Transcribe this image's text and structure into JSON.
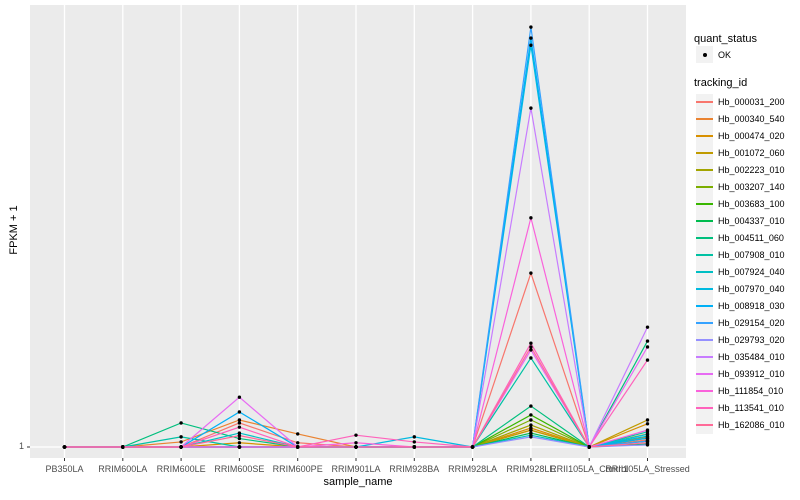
{
  "figure": {
    "background": "#FFFFFF",
    "panel_background": "#EBEBEB",
    "grid_color": "#FFFFFF",
    "point_color": "#000000",
    "tick_color": "#333333",
    "tick_label_color": "#4D4D4D"
  },
  "axes": {
    "x_title": "sample_name",
    "y_title": "FPKM + 1",
    "y_tick_label": "1"
  },
  "legend": {
    "quant_status_title": "quant_status",
    "quant_status_items": [
      {
        "label": "OK",
        "marker": "black-point"
      }
    ],
    "tracking_id_title": "tracking_id"
  },
  "chart_data": {
    "type": "line",
    "title": "",
    "xlabel": "sample_name",
    "ylabel": "FPKM + 1",
    "x_categories": [
      "PB350LA",
      "RRIM600LA",
      "RRIM600LE",
      "RRIM600SE",
      "RRIM600PE",
      "RRIM901LA",
      "RRIM928BA",
      "RRIM928LA",
      "RRIM928LE",
      "RRII105LA_Control",
      "RRII105LA_Stressed"
    ],
    "y_axis": {
      "tick_labels": [
        "1"
      ],
      "scale": "log-like, only the value 1 is labeled",
      "baseline_value": 1
    },
    "values_units": "normalized height above baseline (0 = FPKM+1 of 1, 1 = top of panel)",
    "grid": "vertical major gridline per category, horizontal gridline at y=1",
    "legend_position": "right",
    "point_marker": "black dot on every observation (quant_status = OK)",
    "series": [
      {
        "name": "Hb_000031_200",
        "color": "#F8766D",
        "values": [
          0,
          0,
          0,
          0.057,
          0.01,
          0,
          0,
          0,
          0.412,
          0,
          0.017
        ]
      },
      {
        "name": "Hb_000340_540",
        "color": "#EA8331",
        "values": [
          0,
          0,
          0.012,
          0.064,
          0.031,
          0,
          0,
          0,
          0.04,
          0,
          0.024
        ]
      },
      {
        "name": "Hb_000474_020",
        "color": "#D89000",
        "values": [
          0,
          0,
          0,
          0.01,
          0,
          0,
          0,
          0,
          0.045,
          0,
          0.055
        ]
      },
      {
        "name": "Hb_001072_060",
        "color": "#C09B00",
        "values": [
          0,
          0,
          0,
          0,
          0,
          0,
          0,
          0,
          0.04,
          0,
          0.064
        ]
      },
      {
        "name": "Hb_002223_010",
        "color": "#A3A500",
        "values": [
          0,
          0,
          0,
          0,
          0,
          0,
          0,
          0,
          0.052,
          0,
          0.031
        ]
      },
      {
        "name": "Hb_003207_140",
        "color": "#7CAE00",
        "values": [
          0,
          0,
          0,
          0,
          0,
          0,
          0,
          0,
          0.064,
          0,
          0.021
        ]
      },
      {
        "name": "Hb_003683_100",
        "color": "#39B600",
        "values": [
          0,
          0,
          0,
          0,
          0,
          0,
          0,
          0,
          0.076,
          0,
          0.014
        ]
      },
      {
        "name": "Hb_004337_010",
        "color": "#00BB4E",
        "values": [
          0,
          0,
          0,
          0,
          0,
          0,
          0,
          0,
          0.033,
          0,
          0.007
        ]
      },
      {
        "name": "Hb_004511_060",
        "color": "#00BF7D",
        "values": [
          0,
          0,
          0.057,
          0.02,
          0,
          0,
          0,
          0,
          0.097,
          0,
          0.251
        ]
      },
      {
        "name": "Hb_007908_010",
        "color": "#00C1A3",
        "values": [
          0,
          0,
          0.024,
          0,
          0,
          0,
          0,
          0,
          0.211,
          0,
          0.036
        ]
      },
      {
        "name": "Hb_007924_040",
        "color": "#00BFC4",
        "values": [
          0,
          0,
          0,
          0.033,
          0,
          0,
          0,
          0,
          0.028,
          0,
          0.026
        ]
      },
      {
        "name": "Hb_007970_040",
        "color": "#00BAE0",
        "values": [
          0,
          0,
          0,
          0,
          0,
          0,
          0.024,
          0,
          0.952,
          0,
          0.03
        ]
      },
      {
        "name": "Hb_008918_030",
        "color": "#00B0F6",
        "values": [
          0,
          0,
          0,
          0.083,
          0,
          0,
          0,
          0,
          0.969,
          0,
          0.021
        ]
      },
      {
        "name": "Hb_029154_020",
        "color": "#35A2FF",
        "values": [
          0,
          0,
          0,
          0,
          0,
          0,
          0,
          0,
          0.995,
          0,
          0.014
        ]
      },
      {
        "name": "Hb_029793_020",
        "color": "#9590FF",
        "values": [
          0,
          0,
          0,
          0,
          0,
          0,
          0,
          0,
          0.024,
          0,
          0.005
        ]
      },
      {
        "name": "Hb_035484_010",
        "color": "#C77CFF",
        "values": [
          0,
          0,
          0,
          0,
          0,
          0,
          0,
          0,
          0.803,
          0,
          0.284
        ]
      },
      {
        "name": "Hb_093912_010",
        "color": "#E76BF3",
        "values": [
          0,
          0,
          0,
          0.118,
          0,
          0,
          0,
          0,
          0.23,
          0,
          0.237
        ]
      },
      {
        "name": "Hb_111854_010",
        "color": "#FA62DB",
        "values": [
          0,
          0,
          0,
          0,
          0,
          0.01,
          0,
          0,
          0.543,
          0,
          0.04
        ]
      },
      {
        "name": "Hb_113541_010",
        "color": "#FF62BC",
        "values": [
          0,
          0,
          0,
          0.047,
          0,
          0.028,
          0.012,
          0,
          0.246,
          0,
          0.206
        ]
      },
      {
        "name": "Hb_162086_010",
        "color": "#FF6A98",
        "values": [
          0,
          0,
          0,
          0.027,
          0,
          0,
          0,
          0,
          0.237,
          0,
          0.01
        ]
      }
    ]
  }
}
